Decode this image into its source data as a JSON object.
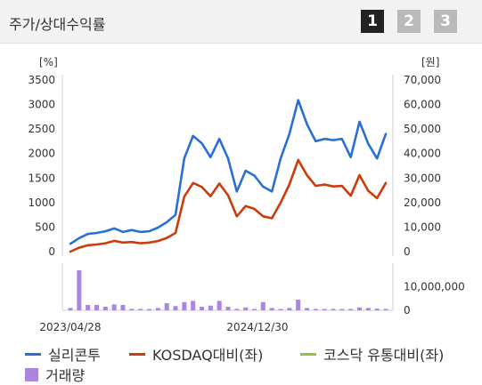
{
  "header": {
    "title": "주가/상대수익률",
    "tabs": [
      {
        "label": "1",
        "active": true
      },
      {
        "label": "2",
        "active": false
      },
      {
        "label": "3",
        "active": false
      }
    ]
  },
  "colors": {
    "price": "#2a6fd6",
    "kosdaq": "#cc3b0c",
    "sector": "#8cc63f",
    "volume": "#ab86de"
  },
  "chart_data": {
    "type": "line",
    "left_unit": "[%]",
    "right_unit": "[원]",
    "left_ticks": [
      "3500",
      "3000",
      "2500",
      "2000",
      "1500",
      "1000",
      "500",
      "0"
    ],
    "right_ticks": [
      "70,000",
      "60,000",
      "50,000",
      "40,000",
      "30,000",
      "20,000",
      "10,000",
      "0"
    ],
    "volume_ticks": [
      "10,000,000",
      "0"
    ],
    "x_labels": [
      "2023/04/28",
      "2024/12/30"
    ],
    "ylim_left": [
      0,
      3500
    ],
    "ylim_right": [
      0,
      70000
    ],
    "series": [
      {
        "name": "실리콘투",
        "axis": "right",
        "values": [
          3200,
          5500,
          7200,
          7600,
          8300,
          9500,
          8000,
          8800,
          8000,
          8300,
          9800,
          12000,
          15000,
          38000,
          47200,
          44200,
          38500,
          46000,
          38000,
          24500,
          33000,
          31000,
          26500,
          24500,
          38000,
          48000,
          61800,
          52000,
          45000,
          46000,
          45500,
          46000,
          38500,
          53000,
          44000,
          38000,
          48000
        ]
      },
      {
        "name": "KOSDAQ대비(좌)",
        "axis": "left",
        "values": [
          0,
          80,
          130,
          145,
          170,
          220,
          185,
          195,
          170,
          185,
          215,
          280,
          380,
          1120,
          1400,
          1320,
          1130,
          1390,
          1150,
          720,
          930,
          870,
          720,
          680,
          1000,
          1370,
          1870,
          1560,
          1340,
          1370,
          1330,
          1340,
          1140,
          1560,
          1240,
          1090,
          1400
        ]
      },
      {
        "name": "코스닥 유통대비(좌)",
        "axis": "left",
        "values": []
      }
    ],
    "volume": {
      "name": "거래량",
      "max": 20000000,
      "values": [
        1000000,
        17000000,
        2300000,
        2300000,
        1500000,
        2500000,
        2300000,
        600000,
        500000,
        500000,
        1000000,
        3000000,
        1800000,
        3500000,
        4000000,
        1500000,
        2000000,
        4000000,
        1500000,
        600000,
        1200000,
        500000,
        3500000,
        1000000,
        500000,
        1000000,
        4500000,
        1000000,
        500000,
        500000,
        600000,
        500000,
        500000,
        1200000,
        1000000,
        700000,
        500000
      ]
    },
    "grid": false
  },
  "legend": [
    {
      "label": "실리콘투",
      "kind": "line",
      "color_key": "price"
    },
    {
      "label": "KOSDAQ대비(좌)",
      "kind": "line",
      "color_key": "kosdaq"
    },
    {
      "label": "코스닥 유통대비(좌)",
      "kind": "line",
      "color_key": "sector"
    },
    {
      "label": "거래량",
      "kind": "box",
      "color_key": "volume"
    }
  ]
}
